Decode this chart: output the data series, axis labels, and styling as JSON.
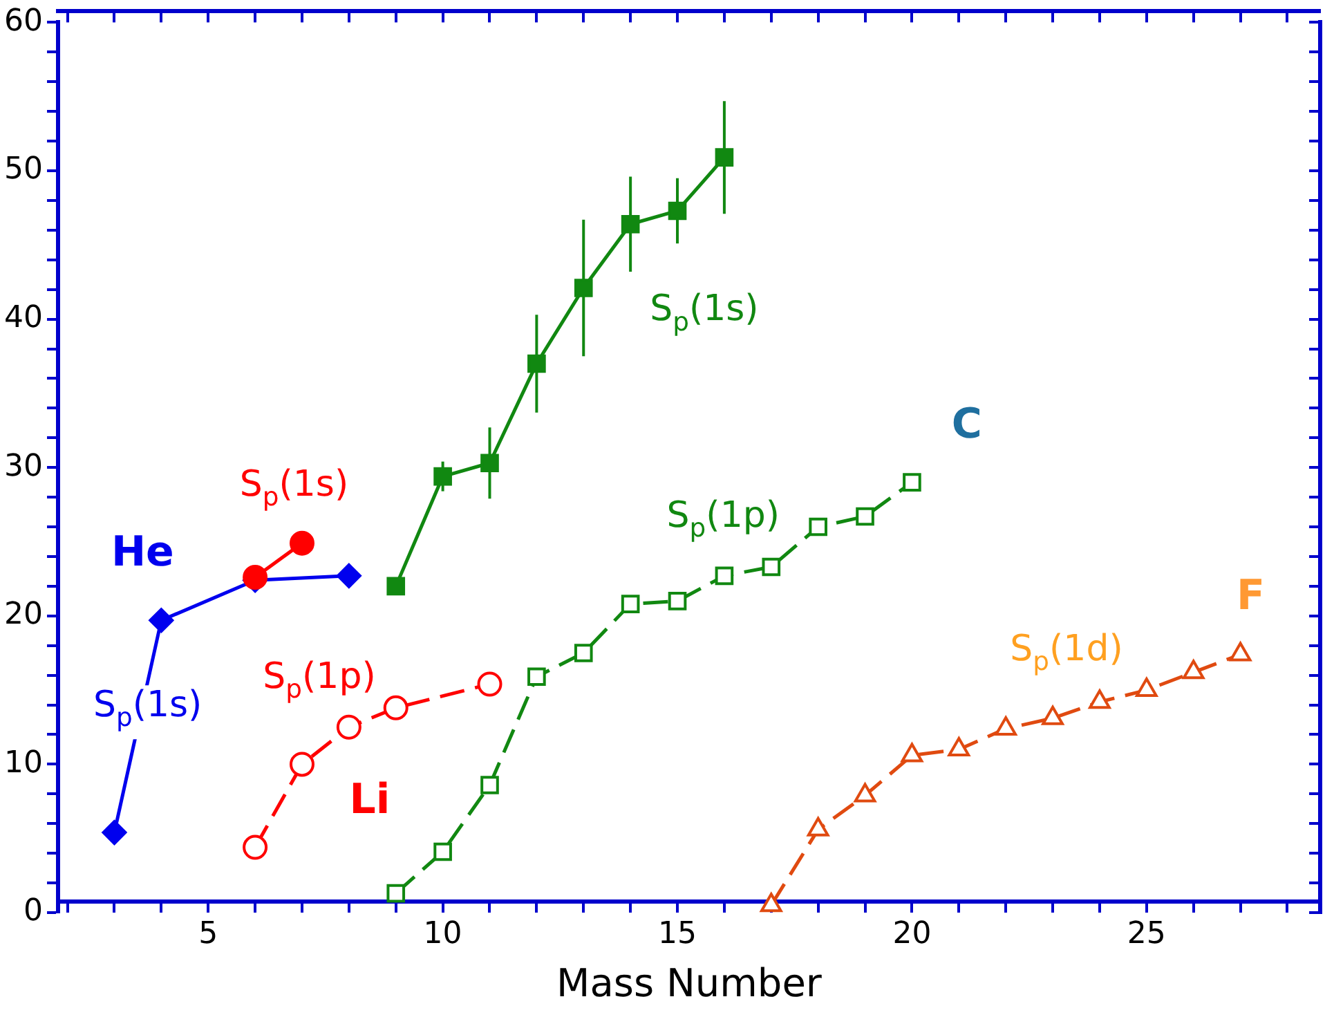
{
  "chart_data": {
    "type": "line",
    "xlabel": "Mass Number",
    "xlim": [
      1.8,
      28.7
    ],
    "ylim": [
      0,
      60
    ],
    "xticks": [
      {
        "value": 2,
        "label": null
      },
      {
        "value": 3,
        "label": null
      },
      {
        "value": 4,
        "label": null
      },
      5,
      {
        "value": 6,
        "label": null
      },
      {
        "value": 7,
        "label": null
      },
      {
        "value": 8,
        "label": null
      },
      {
        "value": 9,
        "label": null
      },
      10,
      {
        "value": 11,
        "label": null
      },
      {
        "value": 12,
        "label": null
      },
      {
        "value": 13,
        "label": null
      },
      {
        "value": 14,
        "label": null
      },
      15,
      {
        "value": 16,
        "label": null
      },
      {
        "value": 17,
        "label": null
      },
      {
        "value": 18,
        "label": null
      },
      {
        "value": 19,
        "label": null
      },
      20,
      {
        "value": 21,
        "label": null
      },
      {
        "value": 22,
        "label": null
      },
      {
        "value": 23,
        "label": null
      },
      {
        "value": 24,
        "label": null
      },
      25,
      {
        "value": 26,
        "label": null
      },
      {
        "value": 27,
        "label": null
      },
      {
        "value": 28,
        "label": null
      }
    ],
    "yticks": [
      0,
      {
        "value": 2,
        "label": null
      },
      {
        "value": 4,
        "label": null
      },
      {
        "value": 6,
        "label": null
      },
      {
        "value": 8,
        "label": null
      },
      10,
      {
        "value": 12,
        "label": null
      },
      {
        "value": 14,
        "label": null
      },
      {
        "value": 16,
        "label": null
      },
      {
        "value": 18,
        "label": null
      },
      20,
      {
        "value": 22,
        "label": null
      },
      {
        "value": 24,
        "label": null
      },
      {
        "value": 26,
        "label": null
      },
      {
        "value": 28,
        "label": null
      },
      30,
      {
        "value": 32,
        "label": null
      },
      {
        "value": 34,
        "label": null
      },
      {
        "value": 36,
        "label": null
      },
      {
        "value": 38,
        "label": null
      },
      40,
      {
        "value": 42,
        "label": null
      },
      {
        "value": 44,
        "label": null
      },
      {
        "value": 46,
        "label": null
      },
      {
        "value": 48,
        "label": null
      },
      50,
      {
        "value": 52,
        "label": null
      },
      {
        "value": 54,
        "label": null
      },
      {
        "value": 56,
        "label": null
      },
      {
        "value": 58,
        "label": null
      },
      60
    ],
    "grid": false,
    "legend": false,
    "series": [
      {
        "name": "S$_{p}$(1s)",
        "color": "#0000ee",
        "marker": "diamond",
        "line_style": "solid",
        "x": [
          3,
          4,
          6,
          8
        ],
        "values": [
          5.4,
          19.7,
          22.4,
          22.7
        ]
      },
      {
        "name": "S$_{p}$(1s)",
        "color": "#ff0000",
        "marker": "circle",
        "line_style": "solid",
        "x": [
          6,
          7
        ],
        "values": [
          22.6,
          24.9
        ]
      },
      {
        "name": "S$_{p}$(1p)",
        "color": "#ff0000",
        "marker": "circle",
        "line_style": "dashed",
        "x": [
          6,
          7,
          8,
          9,
          11
        ],
        "values": [
          4.4,
          10.0,
          12.5,
          13.8,
          15.4
        ]
      },
      {
        "name": "S$_{p}$(1s)",
        "color": "#118811",
        "marker": "square",
        "line_style": "solid",
        "x": [
          9,
          10,
          11,
          12,
          13,
          14,
          15,
          16
        ],
        "values": [
          22.0,
          29.4,
          30.3,
          37.0,
          42.1,
          46.4,
          47.3,
          50.9
        ],
        "errors": [
          null,
          1,
          2.4,
          3.3,
          4.6,
          3.2,
          2.2,
          3.8
        ]
      },
      {
        "name": "S$_{p}$(1p)",
        "color": "#118811",
        "marker": "square",
        "line_style": "dashed",
        "x": [
          9,
          10,
          11,
          12,
          13,
          14,
          15,
          16,
          17,
          18,
          19,
          20
        ],
        "values": [
          1.3,
          4.1,
          8.6,
          15.9,
          17.5,
          20.8,
          21.0,
          22.7,
          23.3,
          26.0,
          26.7,
          29.0
        ]
      },
      {
        "name": "S$_{p}$(1d)",
        "color": "#e04a10",
        "marker": "triangle",
        "line_style": "dashed",
        "x": [
          17,
          18,
          19,
          20,
          21,
          22,
          23,
          24,
          25,
          26,
          27
        ],
        "values": [
          0.5,
          5.6,
          7.9,
          10.6,
          11.0,
          12.4,
          13.1,
          14.2,
          15.0,
          16.2,
          17.4
        ]
      }
    ],
    "annotations": [
      "He",
      "Li",
      "C",
      "F"
    ]
  }
}
